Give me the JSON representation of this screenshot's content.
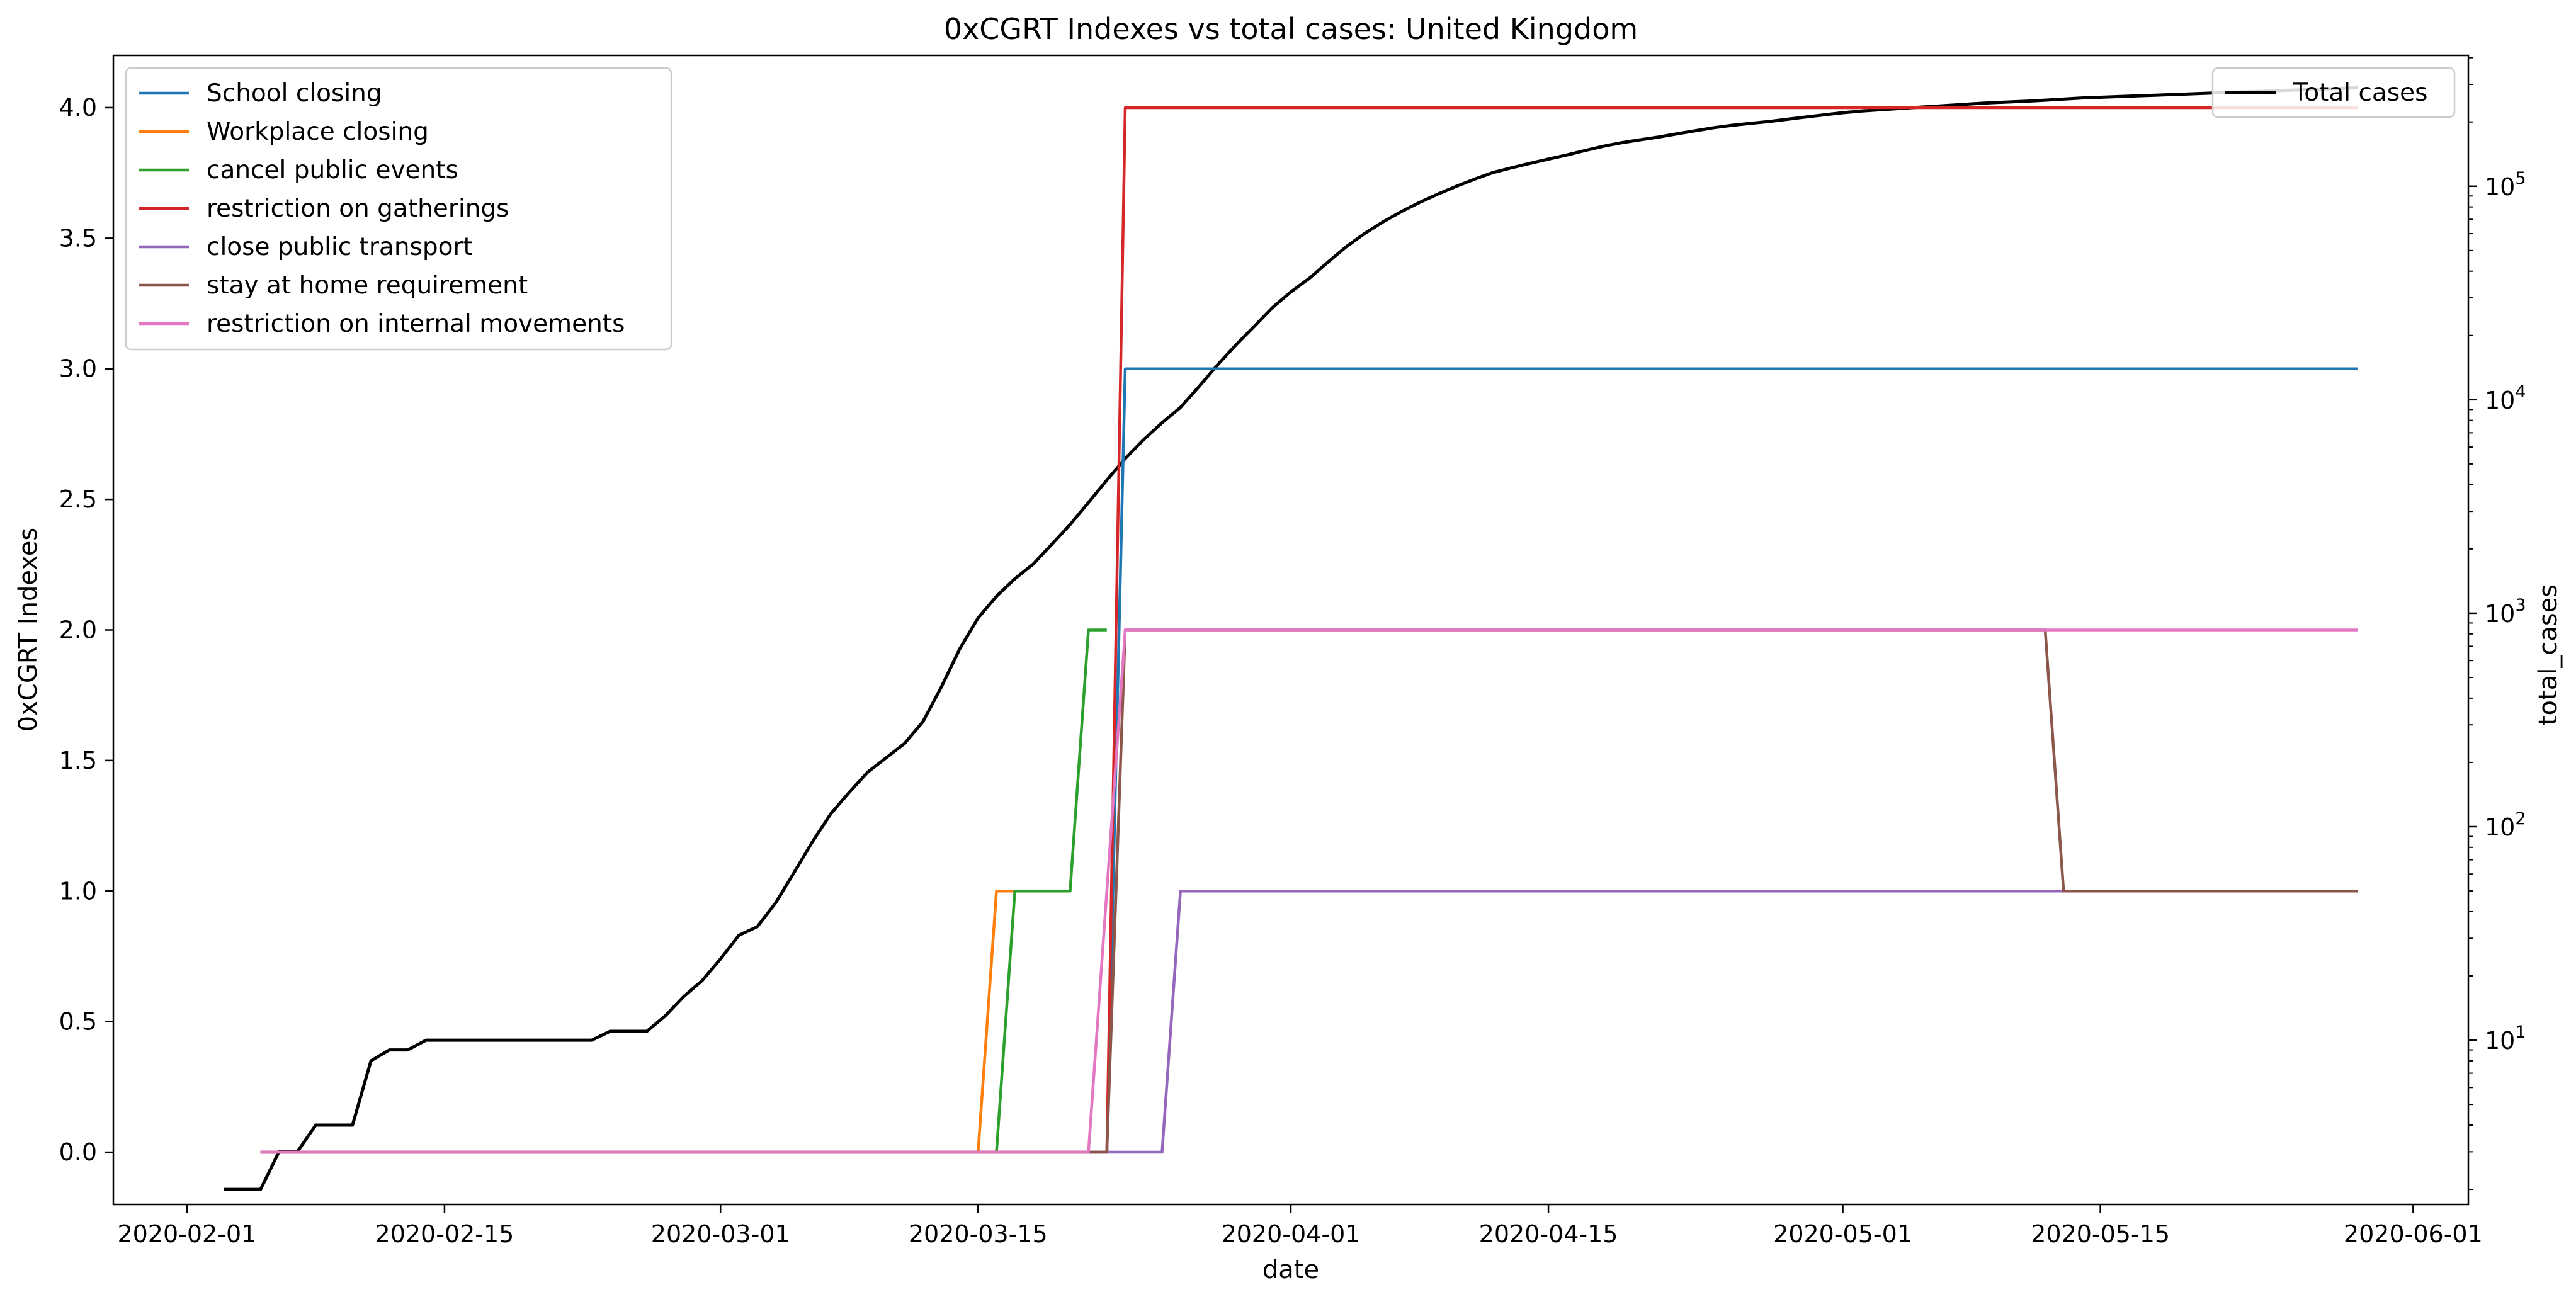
{
  "chart_data": {
    "type": "line",
    "title": "0xCGRT Indexes vs total cases:  United Kingdom",
    "xlabel": "date",
    "ylabel": "0xCGRT Indexes",
    "y2label": "total_cases",
    "x_tick_labels": [
      "2020-02-01",
      "2020-02-15",
      "2020-03-01",
      "2020-03-15",
      "2020-04-01",
      "2020-04-15",
      "2020-05-01",
      "2020-05-15",
      "2020-06-01"
    ],
    "y_tick_labels": [
      "0.0",
      "0.5",
      "1.0",
      "1.5",
      "2.0",
      "2.5",
      "3.0",
      "3.5",
      "4.0"
    ],
    "y2_tick_labels": [
      {
        "base": "10",
        "exp": "1"
      },
      {
        "base": "10",
        "exp": "2"
      },
      {
        "base": "10",
        "exp": "3"
      },
      {
        "base": "10",
        "exp": "4"
      },
      {
        "base": "10",
        "exp": "5"
      }
    ],
    "xlim": [
      "2020-01-28",
      "2020-06-04"
    ],
    "ylim": [
      -0.2,
      4.2
    ],
    "y2_scale": "log",
    "y2lim": [
      1.7,
      410000
    ],
    "grid": false,
    "legend_position": "upper left",
    "legend2_position": "upper right",
    "series": [
      {
        "name": "School closing",
        "color": "#1f77b4",
        "points": [
          [
            "2020-02-05",
            0
          ],
          [
            "2020-03-22",
            0
          ],
          [
            "2020-03-23",
            3
          ],
          [
            "2020-05-29",
            3
          ]
        ]
      },
      {
        "name": "Workplace closing",
        "color": "#ff7f0e",
        "points": [
          [
            "2020-02-05",
            0
          ],
          [
            "2020-03-15",
            0
          ],
          [
            "2020-03-16",
            1
          ],
          [
            "2020-03-17",
            1
          ]
        ]
      },
      {
        "name": "cancel public events",
        "color": "#2ca02c",
        "points": [
          [
            "2020-02-05",
            0
          ],
          [
            "2020-03-16",
            0
          ],
          [
            "2020-03-17",
            1
          ],
          [
            "2020-03-20",
            1
          ],
          [
            "2020-03-21",
            2
          ],
          [
            "2020-03-22",
            2
          ]
        ]
      },
      {
        "name": "restriction on gatherings",
        "color": "#d62728",
        "points": [
          [
            "2020-02-05",
            0
          ],
          [
            "2020-03-22",
            0
          ],
          [
            "2020-03-23",
            4
          ],
          [
            "2020-05-29",
            4
          ]
        ]
      },
      {
        "name": "close public transport",
        "color": "#9467bd",
        "points": [
          [
            "2020-02-05",
            0
          ],
          [
            "2020-03-25",
            0
          ],
          [
            "2020-03-26",
            1
          ],
          [
            "2020-05-29",
            1
          ]
        ]
      },
      {
        "name": "stay at home requirement",
        "color": "#8c564b",
        "points": [
          [
            "2020-02-05",
            0
          ],
          [
            "2020-03-22",
            0
          ],
          [
            "2020-03-23",
            2
          ],
          [
            "2020-05-12",
            2
          ],
          [
            "2020-05-13",
            1
          ],
          [
            "2020-05-29",
            1
          ]
        ]
      },
      {
        "name": "restriction on internal movements",
        "color": "#e377c2",
        "points": [
          [
            "2020-02-05",
            0
          ],
          [
            "2020-03-21",
            0
          ],
          [
            "2020-03-23",
            2
          ],
          [
            "2020-05-29",
            2
          ]
        ]
      }
    ],
    "series2": {
      "name": "Total cases",
      "color": "#000000",
      "axis": "right",
      "points": [
        [
          "2020-02-03",
          2
        ],
        [
          "2020-02-04",
          2
        ],
        [
          "2020-02-05",
          2
        ],
        [
          "2020-02-06",
          3
        ],
        [
          "2020-02-07",
          3
        ],
        [
          "2020-02-08",
          4
        ],
        [
          "2020-02-09",
          4
        ],
        [
          "2020-02-10",
          4
        ],
        [
          "2020-02-11",
          8
        ],
        [
          "2020-02-12",
          9
        ],
        [
          "2020-02-13",
          9
        ],
        [
          "2020-02-14",
          10
        ],
        [
          "2020-02-15",
          10
        ],
        [
          "2020-02-16",
          10
        ],
        [
          "2020-02-17",
          10
        ],
        [
          "2020-02-18",
          10
        ],
        [
          "2020-02-19",
          10
        ],
        [
          "2020-02-20",
          10
        ],
        [
          "2020-02-21",
          10
        ],
        [
          "2020-02-22",
          10
        ],
        [
          "2020-02-23",
          10
        ],
        [
          "2020-02-24",
          11
        ],
        [
          "2020-02-25",
          11
        ],
        [
          "2020-02-26",
          11
        ],
        [
          "2020-02-27",
          13
        ],
        [
          "2020-02-28",
          16
        ],
        [
          "2020-02-29",
          19
        ],
        [
          "2020-03-01",
          24
        ],
        [
          "2020-03-02",
          31
        ],
        [
          "2020-03-03",
          34
        ],
        [
          "2020-03-04",
          44
        ],
        [
          "2020-03-05",
          61
        ],
        [
          "2020-03-06",
          85
        ],
        [
          "2020-03-07",
          115
        ],
        [
          "2020-03-08",
          145
        ],
        [
          "2020-03-09",
          180
        ],
        [
          "2020-03-10",
          210
        ],
        [
          "2020-03-11",
          245
        ],
        [
          "2020-03-12",
          310
        ],
        [
          "2020-03-13",
          450
        ],
        [
          "2020-03-14",
          680
        ],
        [
          "2020-03-15",
          950
        ],
        [
          "2020-03-16",
          1200
        ],
        [
          "2020-03-17",
          1450
        ],
        [
          "2020-03-18",
          1700
        ],
        [
          "2020-03-19",
          2100
        ],
        [
          "2020-03-20",
          2600
        ],
        [
          "2020-03-21",
          3300
        ],
        [
          "2020-03-22",
          4200
        ],
        [
          "2020-03-23",
          5300
        ],
        [
          "2020-03-24",
          6500
        ],
        [
          "2020-03-25",
          7800
        ],
        [
          "2020-03-26",
          9200
        ],
        [
          "2020-03-27",
          11500
        ],
        [
          "2020-03-28",
          14500
        ],
        [
          "2020-03-29",
          18000
        ],
        [
          "2020-03-30",
          22000
        ],
        [
          "2020-03-31",
          27000
        ],
        [
          "2020-04-01",
          32000
        ],
        [
          "2020-04-02",
          37000
        ],
        [
          "2020-04-03",
          44000
        ],
        [
          "2020-04-04",
          52000
        ],
        [
          "2020-04-05",
          60000
        ],
        [
          "2020-04-06",
          68000
        ],
        [
          "2020-04-07",
          76000
        ],
        [
          "2020-04-08",
          84000
        ],
        [
          "2020-04-09",
          92000
        ],
        [
          "2020-04-10",
          100000
        ],
        [
          "2020-04-11",
          108000
        ],
        [
          "2020-04-12",
          116000
        ],
        [
          "2020-04-13",
          122000
        ],
        [
          "2020-04-14",
          128000
        ],
        [
          "2020-04-15",
          134000
        ],
        [
          "2020-04-16",
          140000
        ],
        [
          "2020-04-17",
          147000
        ],
        [
          "2020-04-18",
          154000
        ],
        [
          "2020-04-19",
          160000
        ],
        [
          "2020-04-20",
          165000
        ],
        [
          "2020-04-21",
          170000
        ],
        [
          "2020-04-22",
          176000
        ],
        [
          "2020-04-23",
          182000
        ],
        [
          "2020-04-24",
          188000
        ],
        [
          "2020-04-25",
          193000
        ],
        [
          "2020-04-26",
          197000
        ],
        [
          "2020-04-27",
          201000
        ],
        [
          "2020-04-28",
          206000
        ],
        [
          "2020-04-29",
          211000
        ],
        [
          "2020-04-30",
          216000
        ],
        [
          "2020-05-01",
          221000
        ],
        [
          "2020-05-02",
          225000
        ],
        [
          "2020-05-03",
          228000
        ],
        [
          "2020-05-04",
          231000
        ],
        [
          "2020-05-05",
          234000
        ],
        [
          "2020-05-06",
          237000
        ],
        [
          "2020-05-07",
          240000
        ],
        [
          "2020-05-08",
          243000
        ],
        [
          "2020-05-09",
          246000
        ],
        [
          "2020-05-10",
          248000
        ],
        [
          "2020-05-11",
          250000
        ],
        [
          "2020-05-12",
          253000
        ],
        [
          "2020-05-13",
          256000
        ],
        [
          "2020-05-14",
          259000
        ],
        [
          "2020-05-15",
          261000
        ],
        [
          "2020-05-16",
          263000
        ],
        [
          "2020-05-17",
          265000
        ],
        [
          "2020-05-18",
          267000
        ],
        [
          "2020-05-19",
          269000
        ],
        [
          "2020-05-20",
          271000
        ],
        [
          "2020-05-21",
          273000
        ],
        [
          "2020-05-22",
          275000
        ],
        [
          "2020-05-23",
          277000
        ],
        [
          "2020-05-24",
          279000
        ],
        [
          "2020-05-25",
          281000
        ],
        [
          "2020-05-26",
          283000
        ],
        [
          "2020-05-27",
          285000
        ],
        [
          "2020-05-28",
          287000
        ],
        [
          "2020-05-29",
          289000
        ]
      ]
    }
  }
}
